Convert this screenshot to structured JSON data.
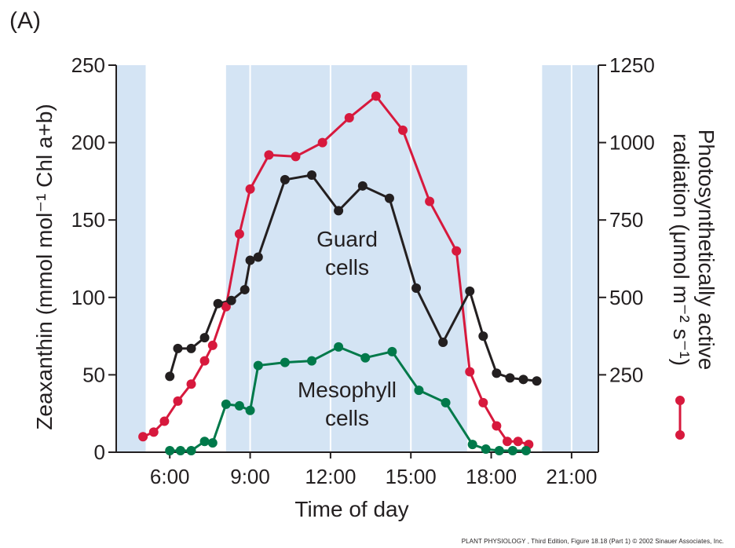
{
  "panel_label": "(A)",
  "caption": "PLANT PHYSIOLOGY , Third Edition, Figure 18.18 (Part 1)  © 2002 Sinauer Associates, Inc.",
  "chart_data": {
    "type": "line",
    "title": "",
    "xlabel": "Time of day",
    "ylabel_left": "Zeaxanthin (mmol mol⁻¹ Chl a+b)",
    "ylabel_right_line1": "Photosynthetically active",
    "ylabel_right_line2": "radiation (μmol m⁻² s⁻¹)",
    "x_ticks": [
      "6:00",
      "9:00",
      "12:00",
      "15:00",
      "18:00",
      "21:00"
    ],
    "x_tick_values": [
      6,
      9,
      12,
      15,
      18,
      21
    ],
    "xlim": [
      4.0,
      22.0
    ],
    "ylim_left": [
      0,
      250
    ],
    "yticks_left": [
      "0",
      "50",
      "100",
      "150",
      "200",
      "250"
    ],
    "ylim_right": [
      0,
      1250
    ],
    "yticks_right": [
      "250",
      "500",
      "750",
      "1000",
      "1250"
    ],
    "grid": false,
    "colors": {
      "guard": "#231f20",
      "mesophyll": "#00794a",
      "par": "#d7193d",
      "shade": "#d4e4f4"
    },
    "shaded_bands": [
      [
        4.0,
        5.1
      ],
      [
        8.1,
        17.1
      ],
      [
        19.9,
        22.0
      ]
    ],
    "band_dividers": [
      9.0,
      12.0,
      15.0,
      21.0
    ],
    "series": [
      {
        "key": "guard",
        "name": "Guard cells",
        "axis": "left",
        "x": [
          6.0,
          6.3,
          6.8,
          7.3,
          7.8,
          8.3,
          8.8,
          9.0,
          9.3,
          10.3,
          11.3,
          12.3,
          13.2,
          14.2,
          15.2,
          16.2,
          17.2,
          17.7,
          18.2,
          18.7,
          19.2,
          19.7
        ],
        "y": [
          49,
          67,
          67,
          74,
          96,
          98,
          105,
          124,
          126,
          176,
          179,
          156,
          172,
          164,
          106,
          71,
          104,
          75,
          51,
          48,
          47,
          46
        ]
      },
      {
        "key": "mesophyll",
        "name": "Mesophyll cells",
        "axis": "left",
        "x": [
          6.0,
          6.4,
          6.8,
          7.3,
          7.6,
          8.1,
          8.6,
          9.0,
          9.3,
          10.3,
          11.3,
          12.3,
          13.3,
          14.3,
          15.3,
          16.3,
          17.3,
          17.8,
          18.3,
          18.8,
          19.3
        ],
        "y": [
          1,
          1,
          1,
          7,
          6,
          31,
          30,
          27,
          56,
          58,
          59,
          68,
          61,
          65,
          40,
          32,
          5,
          2,
          1,
          1,
          1
        ]
      },
      {
        "key": "par",
        "name": "",
        "axis": "right",
        "x": [
          5.0,
          5.4,
          5.8,
          6.3,
          6.8,
          7.3,
          7.6,
          8.1,
          8.6,
          9.0,
          9.7,
          10.7,
          11.7,
          12.7,
          13.7,
          14.7,
          15.7,
          16.7,
          17.2,
          17.7,
          18.2,
          18.6,
          19.0,
          19.4
        ],
        "y": [
          50,
          65,
          100,
          165,
          220,
          295,
          345,
          470,
          705,
          850,
          960,
          955,
          1000,
          1080,
          1150,
          1040,
          810,
          650,
          260,
          160,
          85,
          35,
          35,
          25
        ]
      }
    ]
  }
}
